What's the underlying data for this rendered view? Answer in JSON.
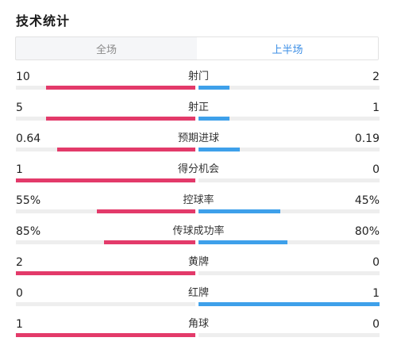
{
  "title": "技术统计",
  "tabs": [
    {
      "label": "全场",
      "active": false
    },
    {
      "label": "上半场",
      "active": true
    }
  ],
  "colors": {
    "home": "#e33a6a",
    "away": "#3ea0ea",
    "tab_active": "#3d8fe6"
  },
  "stats": [
    {
      "label": "射门",
      "home": "10",
      "away": "2",
      "home_fill": 0.83,
      "away_fill": 0.17
    },
    {
      "label": "射正",
      "home": "5",
      "away": "1",
      "home_fill": 0.83,
      "away_fill": 0.17
    },
    {
      "label": "预期进球",
      "home": "0.64",
      "away": "0.19",
      "home_fill": 0.77,
      "away_fill": 0.23
    },
    {
      "label": "得分机会",
      "home": "1",
      "away": "0",
      "home_fill": 1.0,
      "away_fill": 0.0
    },
    {
      "label": "控球率",
      "home": "55%",
      "away": "45%",
      "home_fill": 0.55,
      "away_fill": 0.45
    },
    {
      "label": "传球成功率",
      "home": "85%",
      "away": "80%",
      "home_fill": 0.51,
      "away_fill": 0.49
    },
    {
      "label": "黄牌",
      "home": "2",
      "away": "0",
      "home_fill": 1.0,
      "away_fill": 0.0
    },
    {
      "label": "红牌",
      "home": "0",
      "away": "1",
      "home_fill": 0.0,
      "away_fill": 1.0
    },
    {
      "label": "角球",
      "home": "1",
      "away": "0",
      "home_fill": 1.0,
      "away_fill": 0.0
    }
  ]
}
